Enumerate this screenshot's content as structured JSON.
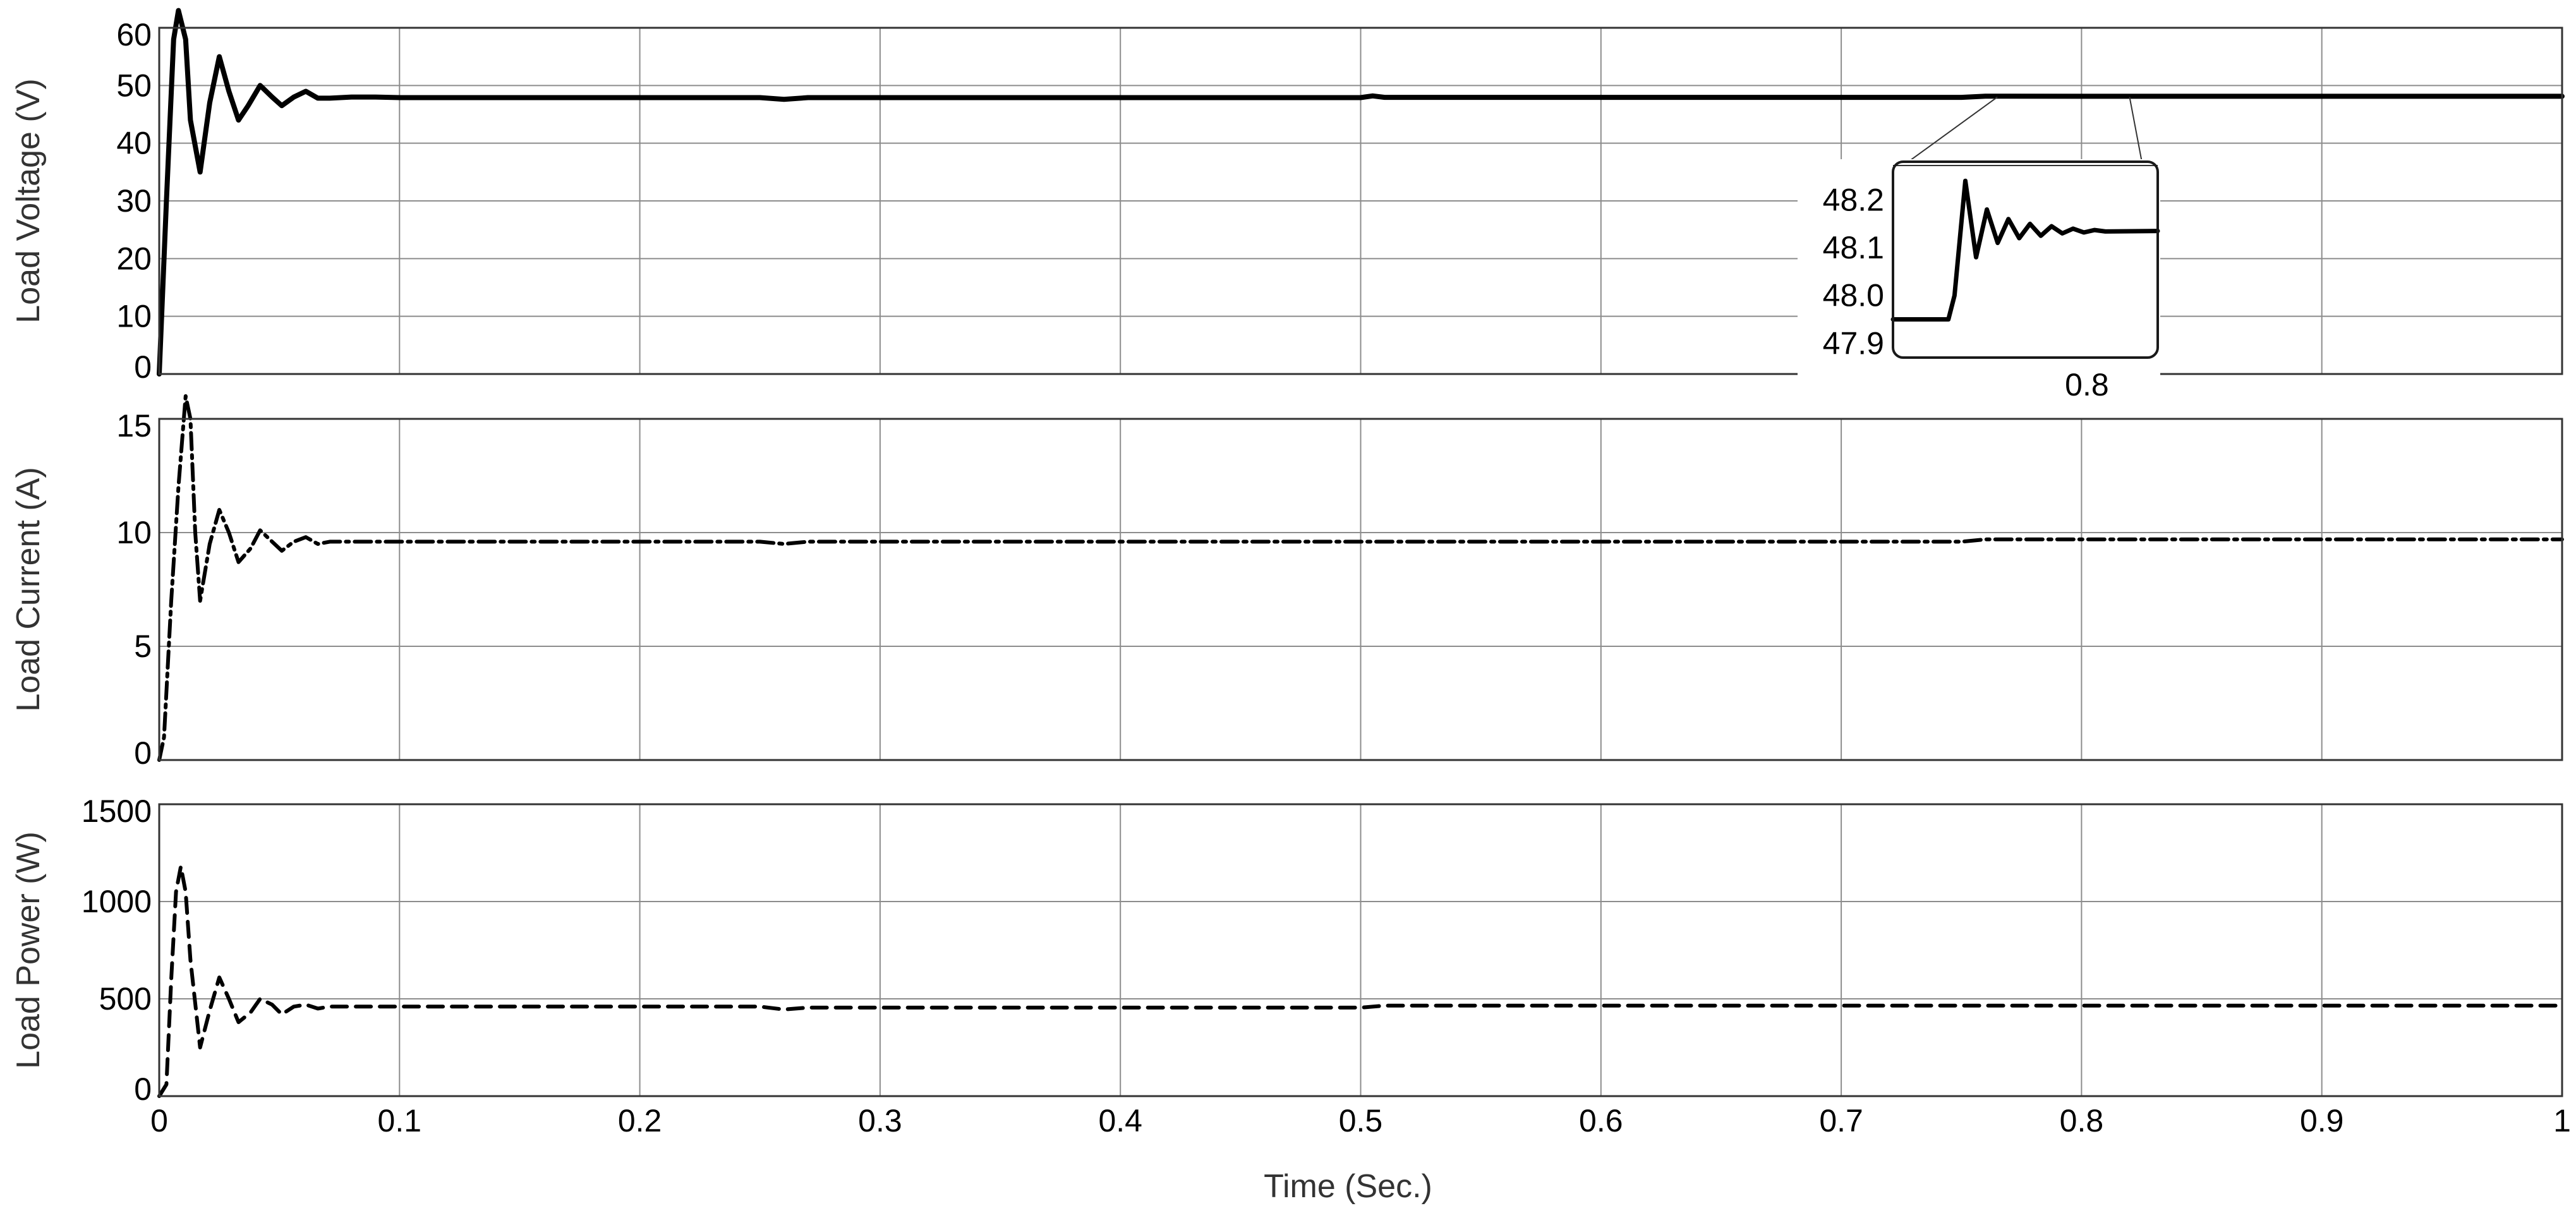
{
  "colors": {
    "trace": "#000000",
    "grid": "#8c8c8c",
    "frame": "#333333",
    "inset_frame": "#1a1a1a",
    "background": "#ffffff"
  },
  "chart_data": [
    {
      "type": "line",
      "ylabel": "Load Voltage (V)",
      "xlabel": "",
      "xlim": [
        0,
        1
      ],
      "ylim": [
        0,
        60
      ],
      "yticks": [
        "0",
        "10",
        "20",
        "30",
        "40",
        "50",
        "60"
      ],
      "line_style": "solid",
      "grid": true,
      "x": [
        0,
        0.003,
        0.006,
        0.008,
        0.011,
        0.013,
        0.017,
        0.021,
        0.025,
        0.029,
        0.033,
        0.037,
        0.042,
        0.047,
        0.051,
        0.056,
        0.061,
        0.066,
        0.071,
        0.08,
        0.09,
        0.1,
        0.25,
        0.26,
        0.27,
        0.5,
        0.505,
        0.51,
        0.75,
        0.76,
        0.8,
        1.0
      ],
      "y": [
        0,
        30,
        58,
        63,
        58,
        44,
        35,
        47,
        55,
        49,
        44,
        46.5,
        50,
        48,
        46.5,
        48,
        49,
        47.8,
        47.8,
        48,
        48,
        47.9,
        47.9,
        47.6,
        47.9,
        47.9,
        48.2,
        47.95,
        47.95,
        48.15,
        48.13,
        48.13
      ],
      "inset": {
        "yticks": [
          "47.9",
          "48.0",
          "48.1",
          "48.2"
        ],
        "xticks": [
          "0.8"
        ],
        "xlim": [
          0.737,
          0.823
        ],
        "ylim": [
          47.87,
          48.28
        ],
        "x": [
          0.737,
          0.755,
          0.757,
          0.7605,
          0.764,
          0.7675,
          0.771,
          0.7745,
          0.778,
          0.7815,
          0.785,
          0.7885,
          0.792,
          0.7955,
          0.799,
          0.8025,
          0.806,
          0.823
        ],
        "y": [
          47.95,
          47.95,
          48.0,
          48.24,
          48.08,
          48.18,
          48.11,
          48.16,
          48.12,
          48.15,
          48.125,
          48.145,
          48.13,
          48.14,
          48.132,
          48.137,
          48.134,
          48.135
        ]
      }
    },
    {
      "type": "line",
      "ylabel": "Load Current (A)",
      "xlabel": "",
      "xlim": [
        0,
        1
      ],
      "ylim": [
        0,
        15
      ],
      "yticks": [
        "0",
        "5",
        "10",
        "15"
      ],
      "line_style": "dash-dot",
      "grid": true,
      "x": [
        0,
        0.002,
        0.005,
        0.008,
        0.011,
        0.013,
        0.015,
        0.017,
        0.021,
        0.025,
        0.029,
        0.033,
        0.038,
        0.042,
        0.047,
        0.051,
        0.056,
        0.061,
        0.066,
        0.071,
        0.08,
        0.1,
        0.25,
        0.26,
        0.27,
        0.5,
        0.75,
        0.76,
        1.0
      ],
      "y": [
        0,
        1,
        7,
        12,
        16,
        15,
        10,
        7,
        9.5,
        11,
        10,
        8.7,
        9.3,
        10.1,
        9.6,
        9.2,
        9.6,
        9.8,
        9.5,
        9.6,
        9.6,
        9.6,
        9.6,
        9.5,
        9.6,
        9.6,
        9.6,
        9.7,
        9.7
      ]
    },
    {
      "type": "line",
      "ylabel": "Load Power (W)",
      "xlabel": "Time (Sec.)",
      "xlim": [
        0,
        1
      ],
      "ylim": [
        0,
        1500
      ],
      "yticks": [
        "0",
        "500",
        "1000",
        "1500"
      ],
      "xticks": [
        "0",
        "0.1",
        "0.2",
        "0.3",
        "0.4",
        "0.5",
        "0.6",
        "0.7",
        "0.8",
        "0.9",
        "1"
      ],
      "line_style": "dashed",
      "grid": true,
      "x": [
        0,
        0.003,
        0.005,
        0.007,
        0.009,
        0.011,
        0.013,
        0.017,
        0.021,
        0.025,
        0.029,
        0.033,
        0.038,
        0.042,
        0.047,
        0.051,
        0.056,
        0.061,
        0.066,
        0.071,
        0.08,
        0.1,
        0.25,
        0.26,
        0.27,
        0.5,
        0.51,
        0.75,
        1.0
      ],
      "y": [
        0,
        60,
        600,
        1050,
        1180,
        1050,
        700,
        250,
        440,
        610,
        500,
        380,
        430,
        500,
        470,
        420,
        460,
        470,
        450,
        460,
        460,
        460,
        460,
        445,
        455,
        455,
        465,
        465,
        465
      ]
    }
  ]
}
